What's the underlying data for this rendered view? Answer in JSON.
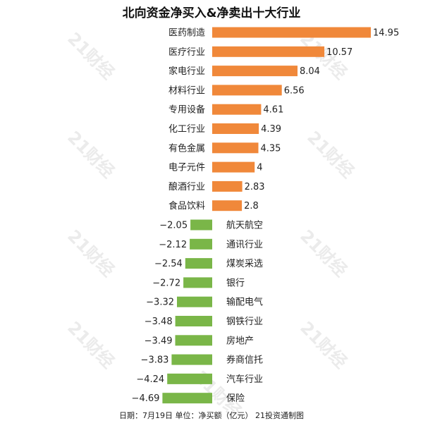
{
  "footer": "日期：7月19日 单位：净买额（亿元） 21投资通制图",
  "watermark": "21财经",
  "chart_data": {
    "type": "bar",
    "orientation": "horizontal",
    "title": "北向资金净买入&净卖出十大行业",
    "categories": [
      "医药制造",
      "医疗行业",
      "家电行业",
      "材料行业",
      "专用设备",
      "化工行业",
      "有色金属",
      "电子元件",
      "酿酒行业",
      "食品饮料",
      "航天航空",
      "通讯行业",
      "煤炭采选",
      "银行",
      "输配电气",
      "钢铁行业",
      "房地产",
      "券商信托",
      "汽车行业",
      "保险"
    ],
    "values": [
      14.95,
      10.57,
      8.04,
      6.56,
      4.61,
      4.39,
      4.35,
      4,
      2.83,
      2.8,
      -2.05,
      -2.12,
      -2.54,
      -2.72,
      -3.32,
      -3.48,
      -3.49,
      -3.83,
      -4.24,
      -4.69
    ],
    "value_labels": [
      "14.95",
      "10.57",
      "8.04",
      "6.56",
      "4.61",
      "4.39",
      "4.35",
      "4",
      "2.83",
      "2.8",
      "−2.05",
      "−2.12",
      "−2.54",
      "−2.72",
      "−3.32",
      "−3.48",
      "−3.49",
      "−3.83",
      "−4.24",
      "−4.69"
    ],
    "colors": {
      "positive": "#f0883a",
      "negative": "#7ab648"
    },
    "xlim": [
      -4.69,
      14.95
    ],
    "grid": false,
    "legend": "none"
  }
}
